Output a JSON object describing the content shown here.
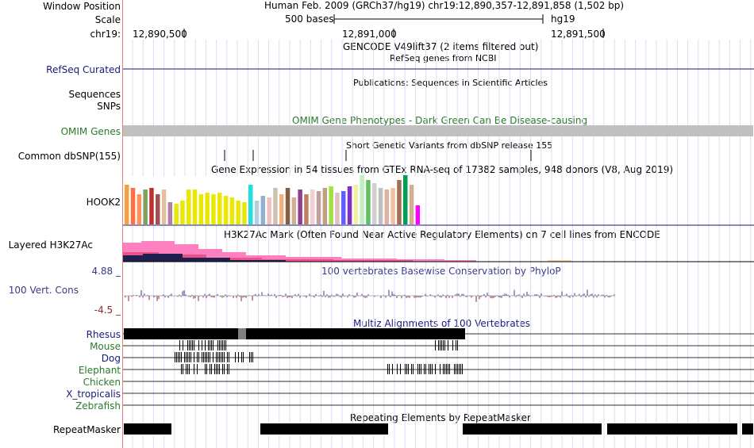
{
  "header": {
    "window_position_label": "Window Position",
    "window_position_value": "Human Feb. 2009 (GRCh37/hg19)   chr19:12,890,357-12,891,858 (1,502 bp)",
    "scale_label": "Scale",
    "scale_text": "500 bases",
    "assembly": "hg19",
    "chrom_label": "chr19:",
    "ticks": [
      "12,890,500",
      "12,891,000",
      "12,891,500"
    ]
  },
  "tracks": {
    "gencode_title": "GENCODE V49lift37 (2 items filtered out)",
    "refseq_title": "RefSeq genes from NCBI",
    "refseq_label": "RefSeq Curated",
    "publications_title": "Publications: Sequences in Scientific Articles",
    "sequences_label": "Sequences",
    "snps_label": "SNPs",
    "omim_title": "OMIM Gene Phenotypes - Dark Green Can Be Disease-causing",
    "omim_label": "OMIM Genes",
    "dbsnp_title": "Short Genetic Variants from dbSNP release 155",
    "dbsnp_label": "Common dbSNP(155)",
    "gtex_title": "Gene Expression in 54 tissues from GTEx RNA-seq of 17382 samples, 948 donors (V8, Aug 2019)",
    "gtex_label": "HOOK2",
    "h3k27ac_title": "H3K27Ac Mark (Often Found Near Active Regulatory Elements) on 7 cell lines from ENCODE",
    "h3k27ac_label": "Layered H3K27Ac",
    "phylop_title": "100 vertebrates Basewise Conservation by PhyloP",
    "phylop_label": "100 Vert. Cons",
    "phylop_max": "4.88 _",
    "phylop_min": "-4.5 _",
    "multiz_title": "Multiz Alignments of 100 Vertebrates",
    "species": [
      {
        "name": "Rhesus",
        "color": "#1a1a7a"
      },
      {
        "name": "Mouse",
        "color": "#2a7a2a"
      },
      {
        "name": "Dog",
        "color": "#1a1a7a"
      },
      {
        "name": "Elephant",
        "color": "#2a7a2a"
      },
      {
        "name": "Chicken",
        "color": "#2a7a2a"
      },
      {
        "name": "X_tropicalis",
        "color": "#1a1a7a"
      },
      {
        "name": "Zebrafish",
        "color": "#2a7a2a"
      }
    ],
    "repeat_title": "Repeating Elements by RepeatMasker",
    "repeat_label": "RepeatMasker"
  },
  "colors": {
    "navy": "#1a1a7a",
    "green": "#2a7a2a",
    "omim_bar": "#c0c0c0",
    "h3k27ac_pink": "#ff80c0",
    "phylop_label": "#3a3a8a",
    "phylop_neg": "#8a2a2a"
  },
  "gtex_bar_colors": [
    "#f4a040",
    "#ff7040",
    "#ff9060",
    "#80a060",
    "#c03030",
    "#a05050",
    "#e0c0a0",
    "#b080a0",
    "#e8e800",
    "#e8e800",
    "#e8e800",
    "#e8e800",
    "#e8e800",
    "#e8e800",
    "#e8e800",
    "#e8e800",
    "#e8e800",
    "#e8e800",
    "#e8e800",
    "#e8e800",
    "#20e0e0",
    "#b0d0e0",
    "#90b0d0",
    "#f0c0c0",
    "#d0c0b0",
    "#f0b080",
    "#806040",
    "#d0b090",
    "#904090",
    "#c08060",
    "#f0d0d0",
    "#c0a0a0",
    "#c0a080",
    "#a0e040",
    "#e0c0c0",
    "#6060ff",
    "#8030c0",
    "#f0f0a0",
    "#c0f0c0",
    "#60c060",
    "#d0d0d0",
    "#c0c0c0",
    "#e0b0a0",
    "#f0c0a0",
    "#a07050",
    "#00a050",
    "#d0b090",
    "#ff00ff"
  ]
}
